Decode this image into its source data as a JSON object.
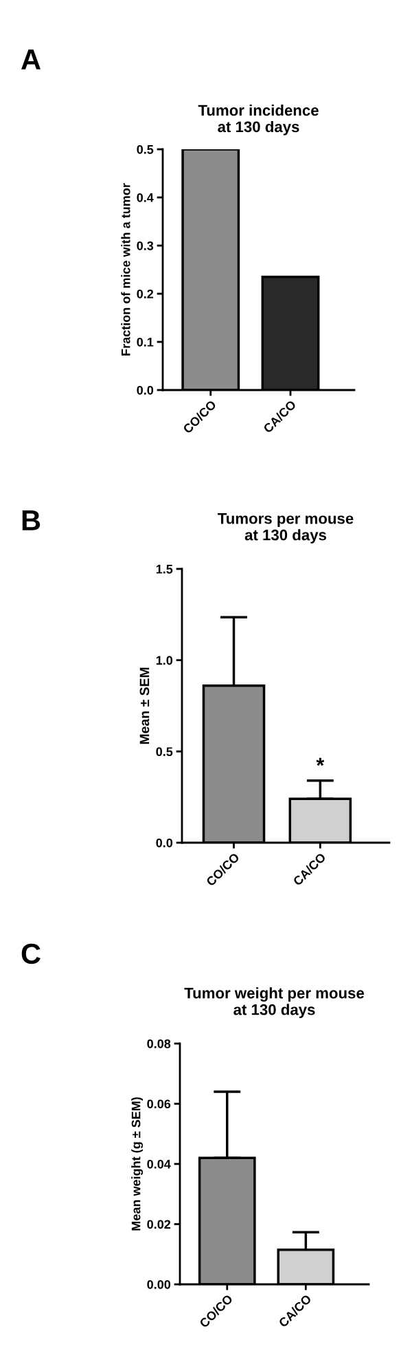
{
  "chart_data": [
    {
      "type": "bar",
      "title": "Tumor incidence\nat 130 days",
      "ylabel": "Fraction of mice with a tumor",
      "categories": [
        "CO/CO",
        "CA/CO"
      ],
      "values": [
        0.5,
        0.235
      ],
      "colors": [
        "#8c8c8c",
        "#2a2a2a"
      ],
      "ylim": [
        0,
        0.5
      ],
      "yticks": [
        "0.0",
        0.1,
        0.2,
        0.3,
        0.4,
        0.5
      ],
      "annotations": [
        "A"
      ]
    },
    {
      "type": "bar",
      "title": "Tumors per mouse\nat 130 days",
      "ylabel": "Mean ± SEM",
      "categories": [
        "CO/CO",
        "CA/CO"
      ],
      "values": [
        0.86,
        0.24
      ],
      "errors": [
        [
          0.86,
          1.235
        ],
        [
          0.24,
          0.34
        ]
      ],
      "colors": [
        "#8c8c8c",
        "#d0d0d0"
      ],
      "ylim": [
        0,
        1.5
      ],
      "yticks": [
        {
          "value": 0,
          "label": "0.0"
        },
        0.5,
        {
          "value": 1,
          "label": "1.0"
        },
        1.5
      ],
      "annotations": [
        "B",
        {
          "text": "*",
          "x": "CA/CO",
          "y": 0.34
        }
      ]
    },
    {
      "type": "bar",
      "title": "Tumor weight per mouse\nat 130 days",
      "ylabel": "Mean weight (g ± SEM)",
      "categories": [
        "CO/CO",
        "CA/CO"
      ],
      "values": [
        0.042,
        0.0115
      ],
      "errors": [
        [
          0.042,
          0.064
        ],
        [
          0.0115,
          0.0173
        ]
      ],
      "colors": [
        "#8c8c8c",
        "#d0d0d0"
      ],
      "ylim": [
        0,
        0.08
      ],
      "yticks": [
        {
          "value": 0,
          "label": "0.00"
        },
        {
          "value": 0.02,
          "label": "0.02"
        },
        {
          "value": 0.04,
          "label": "0.04"
        },
        {
          "value": 0.06,
          "label": "0.06"
        },
        {
          "value": 0.08,
          "label": "0.08"
        }
      ],
      "annotations": [
        "C"
      ]
    }
  ]
}
